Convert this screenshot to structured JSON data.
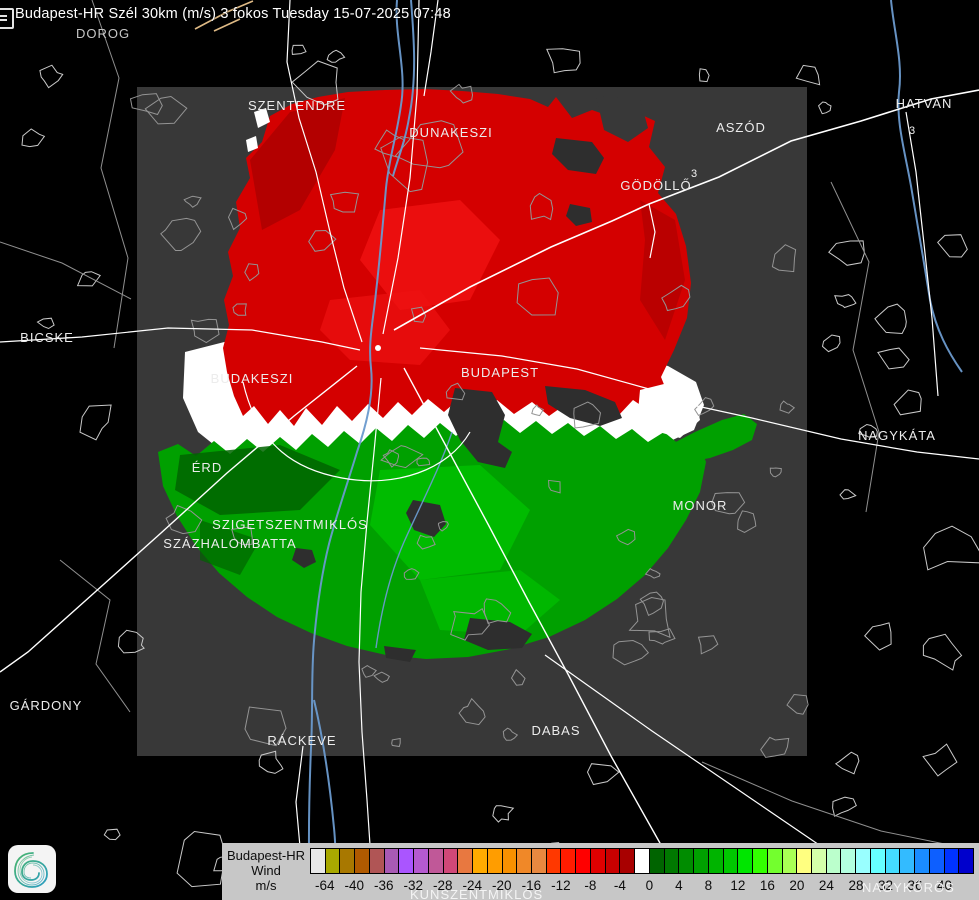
{
  "header": {
    "title": "Budapest-HR Szél 30km (m/s) 3 fokos Tuesday 15-07-2025 07:48"
  },
  "map": {
    "labels": [
      {
        "text": "DOROG"
      },
      {
        "text": "SZENTENDRE"
      },
      {
        "text": "DUNAKESZI"
      },
      {
        "text": "ASZÓD"
      },
      {
        "text": "GÖDÖLLŐ"
      },
      {
        "text": "HATVAN"
      },
      {
        "text": "BICSKE"
      },
      {
        "text": "BUDAKESZI"
      },
      {
        "text": "BUDAPEST"
      },
      {
        "text": "ÉRD"
      },
      {
        "text": "SZIGETSZENTMIKLÓS"
      },
      {
        "text": "SZÁZHALOMBATTA"
      },
      {
        "text": "MONOR"
      },
      {
        "text": "NAGYKÁTA"
      },
      {
        "text": "GÁRDONY"
      },
      {
        "text": "RÁCKEVE"
      },
      {
        "text": "DABAS"
      },
      {
        "text": "KUNSZENTMIKLÓS"
      },
      {
        "text": "NAGYKŐRÖS"
      }
    ],
    "road_numbers": [
      {
        "text": "3"
      },
      {
        "text": "3"
      }
    ],
    "colors": {
      "wind_away_red": "#d40000",
      "wind_toward_green": "#00a000",
      "zero_isodop_white": "#ffffff",
      "river_blue": "#6b9ace",
      "domain_gray": "#383838",
      "background": "#000000"
    }
  },
  "legend": {
    "title": "Budapest-HR",
    "subtitle": "Wind",
    "unit": "m/s",
    "ticks": [
      "-64",
      "-40",
      "-36",
      "-32",
      "-28",
      "-24",
      "-20",
      "-16",
      "-12",
      "-8",
      "-4",
      "0",
      "4",
      "8",
      "12",
      "16",
      "20",
      "24",
      "28",
      "32",
      "36",
      "40"
    ],
    "cells": [
      "#e8e8e8",
      "#a8a800",
      "#a87800",
      "#b05a00",
      "#b05555",
      "#a85ab4",
      "#aa55ff",
      "#b55ad0",
      "#c05898",
      "#d04878",
      "#e87840",
      "#ffaa00",
      "#ff9d00",
      "#f89000",
      "#f08828",
      "#e88840",
      "#ff3800",
      "#ff1c00",
      "#ff0000",
      "#e00000",
      "#c80000",
      "#a80000",
      "#ffffff",
      "#006400",
      "#007800",
      "#008c00",
      "#00a000",
      "#00b400",
      "#00c800",
      "#00e600",
      "#33ff00",
      "#73ff2e",
      "#aaff55",
      "#ffff80",
      "#d5ffaa",
      "#bbffcc",
      "#b3ffe0",
      "#99ffff",
      "#66ffff",
      "#44ddff",
      "#33bbff",
      "#1a8cff",
      "#0d5fff",
      "#0033ff",
      "#0000cc"
    ]
  }
}
